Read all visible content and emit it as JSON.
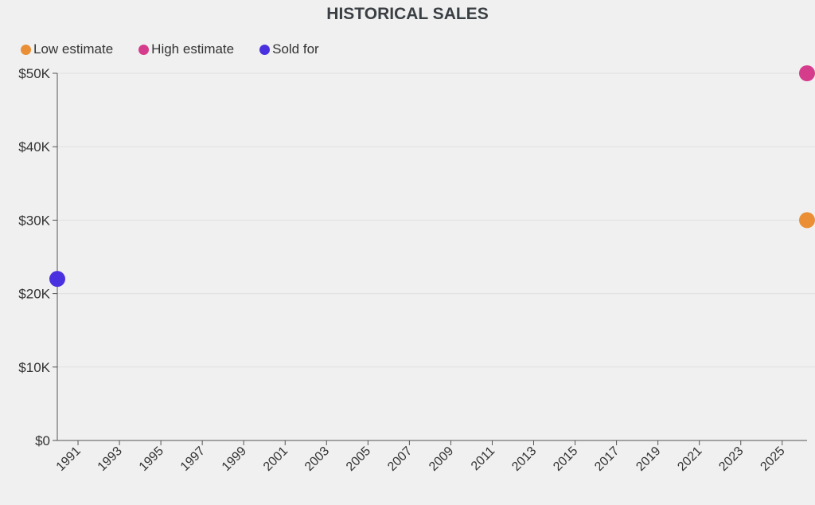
{
  "chart_data": {
    "type": "scatter",
    "title": "HISTORICAL SALES",
    "xlabel": "",
    "ylabel": "",
    "xlim": [
      1990,
      2026.2
    ],
    "ylim": [
      0,
      50000
    ],
    "x_ticks": [
      "1991",
      "1993",
      "1995",
      "1997",
      "1999",
      "2001",
      "2003",
      "2005",
      "2007",
      "2009",
      "2011",
      "2013",
      "2015",
      "2017",
      "2019",
      "2021",
      "2023",
      "2025"
    ],
    "y_ticks": [
      "$0",
      "$10K",
      "$20K",
      "$30K",
      "$40K",
      "$50K"
    ],
    "grid": "horizontal",
    "legend_placement": "top-left",
    "series": [
      {
        "name": "Low estimate",
        "color": "#ea8f35",
        "points": [
          {
            "x": 2026.2,
            "y": 30000
          }
        ]
      },
      {
        "name": "High estimate",
        "color": "#d63c8c",
        "points": [
          {
            "x": 2026.2,
            "y": 50000
          }
        ]
      },
      {
        "name": "Sold for",
        "color": "#4a31e0",
        "points": [
          {
            "x": 1990,
            "y": 22000
          }
        ]
      }
    ]
  }
}
